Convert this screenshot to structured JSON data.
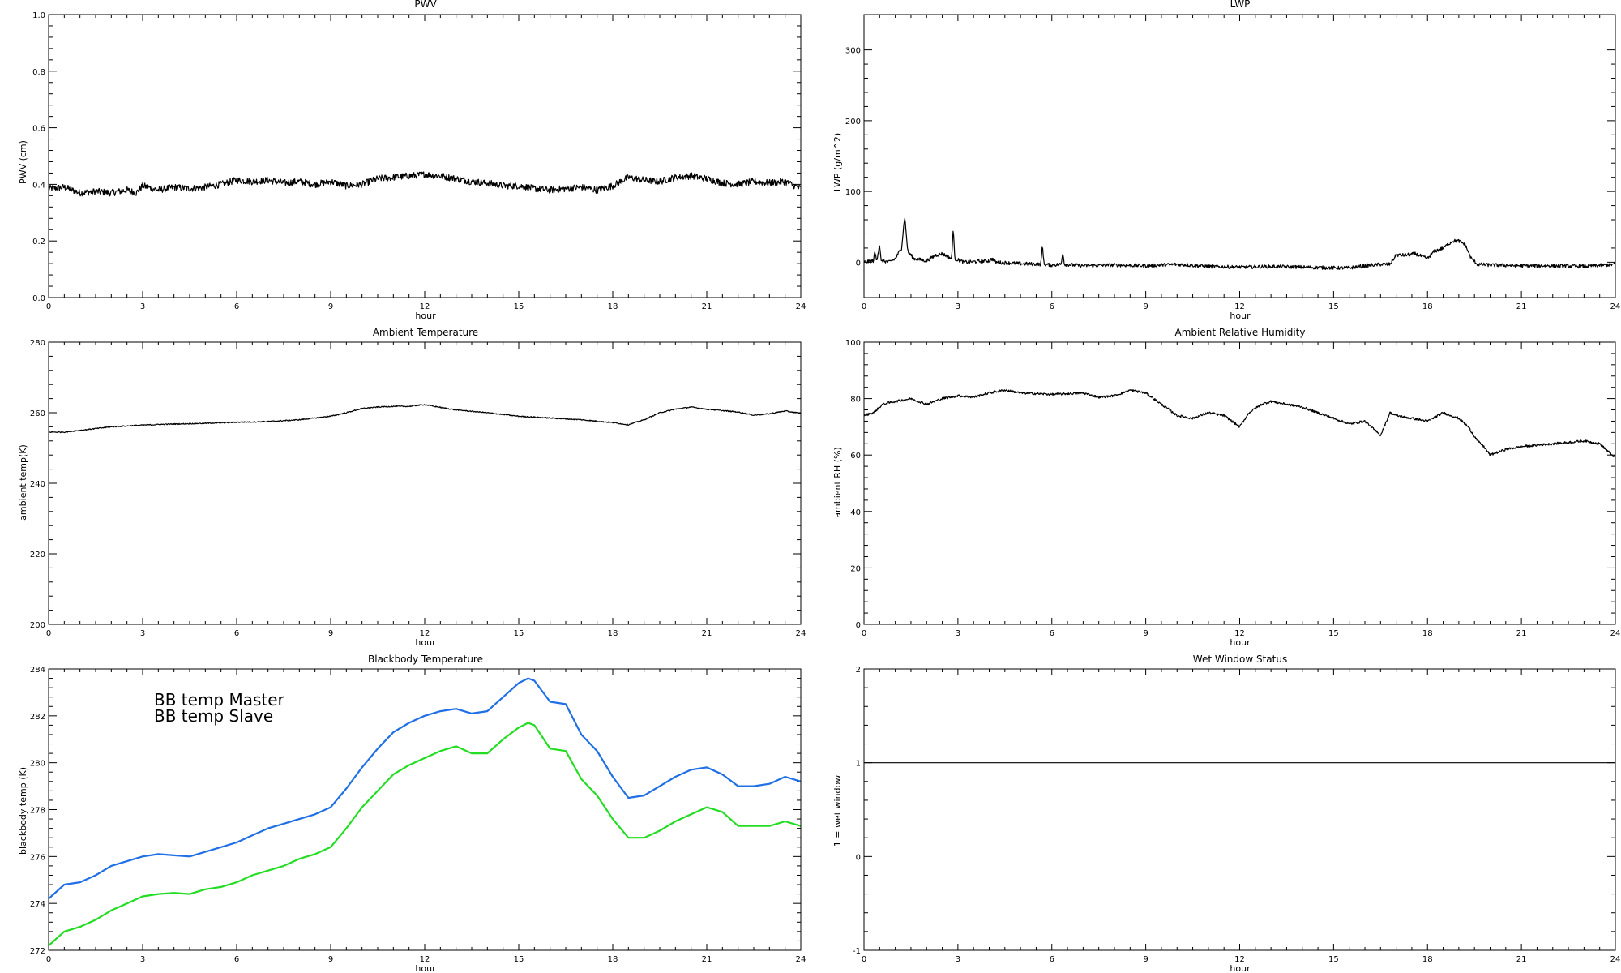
{
  "chart_data": [
    {
      "id": "pwv",
      "type": "line",
      "title": "PWV",
      "xlabel": "hour",
      "ylabel": "PWV (cm)",
      "xlim": [
        0,
        24
      ],
      "ylim": [
        0,
        1.0
      ],
      "xticks": [
        "0",
        "3",
        "6",
        "9",
        "12",
        "15",
        "18",
        "21",
        "24"
      ],
      "yticks": [
        "0.0",
        "0.2",
        "0.4",
        "0.6",
        "0.8",
        "1.0"
      ],
      "noise": 0.012,
      "series": [
        {
          "color": "#000000",
          "x": [
            0,
            0.5,
            1,
            1.5,
            2,
            2.5,
            2.8,
            3,
            3.5,
            4,
            4.5,
            5,
            5.5,
            6,
            6.5,
            7,
            7.5,
            8,
            8.5,
            9,
            9.5,
            10,
            10.5,
            11,
            11.5,
            12,
            12.5,
            13,
            13.5,
            14,
            14.5,
            15,
            15.5,
            16,
            16.5,
            17,
            17.5,
            18,
            18.5,
            19,
            19.5,
            20,
            20.5,
            21,
            21.5,
            22,
            22.5,
            23,
            23.5,
            24
          ],
          "y": [
            0.385,
            0.39,
            0.37,
            0.375,
            0.37,
            0.38,
            0.37,
            0.395,
            0.38,
            0.39,
            0.385,
            0.39,
            0.4,
            0.415,
            0.41,
            0.415,
            0.405,
            0.41,
            0.4,
            0.41,
            0.395,
            0.4,
            0.42,
            0.425,
            0.43,
            0.435,
            0.43,
            0.42,
            0.41,
            0.405,
            0.395,
            0.395,
            0.385,
            0.38,
            0.385,
            0.39,
            0.38,
            0.395,
            0.425,
            0.415,
            0.41,
            0.425,
            0.43,
            0.42,
            0.405,
            0.4,
            0.41,
            0.405,
            0.41,
            0.385
          ]
        }
      ]
    },
    {
      "id": "lwp",
      "type": "line",
      "title": "LWP",
      "xlabel": "hour",
      "ylabel": "LWP (g/m^2)",
      "xlim": [
        0,
        24
      ],
      "ylim": [
        -50,
        350
      ],
      "xticks": [
        "0",
        "3",
        "6",
        "9",
        "12",
        "15",
        "18",
        "21",
        "24"
      ],
      "yticks": [
        "0",
        "100",
        "200",
        "300"
      ],
      "noise": 2.5,
      "series": [
        {
          "color": "#000000",
          "x": [
            0,
            0.3,
            0.35,
            0.4,
            0.5,
            0.55,
            0.6,
            0.8,
            1.0,
            1.2,
            1.3,
            1.4,
            1.6,
            2.0,
            2.3,
            2.5,
            2.8,
            2.85,
            2.9,
            3.2,
            4.0,
            4.1,
            4.2,
            5.0,
            5.65,
            5.7,
            5.75,
            6.0,
            6.3,
            6.35,
            6.4,
            7,
            8,
            9,
            10,
            11,
            12,
            13,
            14,
            15,
            15.5,
            16,
            16.5,
            16.8,
            17,
            17.3,
            17.6,
            18,
            18.2,
            18.5,
            18.8,
            19.0,
            19.2,
            19.4,
            19.6,
            20,
            21,
            22,
            23,
            24
          ],
          "y": [
            0,
            2,
            15,
            2,
            25,
            0,
            2,
            0,
            5,
            20,
            65,
            15,
            5,
            2,
            10,
            12,
            5,
            50,
            5,
            0,
            2,
            5,
            0,
            -2,
            -3,
            25,
            -3,
            -4,
            -3,
            15,
            -3,
            -5,
            -4,
            -5,
            -3,
            -6,
            -7,
            -6,
            -7,
            -8,
            -8,
            -5,
            -3,
            -3,
            10,
            10,
            12,
            5,
            15,
            20,
            30,
            30,
            25,
            5,
            -3,
            -4,
            -5,
            -5,
            -6,
            -3
          ]
        }
      ]
    },
    {
      "id": "ambient-temperature",
      "type": "line",
      "title": "Ambient Temperature",
      "xlabel": "hour",
      "ylabel": "ambient temp(K)",
      "xlim": [
        0,
        24
      ],
      "ylim": [
        200,
        280
      ],
      "xticks": [
        "0",
        "3",
        "6",
        "9",
        "12",
        "15",
        "18",
        "21",
        "24"
      ],
      "yticks": [
        "200",
        "220",
        "240",
        "260",
        "280"
      ],
      "noise": 0.15,
      "series": [
        {
          "color": "#000000",
          "x": [
            0,
            0.5,
            1,
            1.5,
            2,
            3,
            4,
            5,
            6,
            7,
            8,
            9,
            9.5,
            10,
            10.5,
            11,
            11.5,
            12,
            12.5,
            13,
            14,
            15,
            16,
            17,
            18,
            18.5,
            19,
            19.5,
            20,
            20.5,
            21,
            22,
            22.5,
            23,
            23.5,
            24
          ],
          "y": [
            254.5,
            254.5,
            255,
            255.5,
            256,
            256.5,
            256.8,
            257,
            257.3,
            257.5,
            258,
            259,
            260,
            261.2,
            261.6,
            261.8,
            261.8,
            262.3,
            261.5,
            260.8,
            260,
            259,
            258.5,
            258,
            257.2,
            256.6,
            258,
            260,
            261,
            261.6,
            261,
            260.2,
            259.3,
            259.7,
            260.5,
            259.8
          ]
        }
      ]
    },
    {
      "id": "ambient-relative-humidity",
      "type": "line",
      "title": "Ambient Relative Humidity",
      "xlabel": "hour",
      "ylabel": "ambient RH (%)",
      "xlim": [
        0,
        24
      ],
      "ylim": [
        0,
        100
      ],
      "xticks": [
        "0",
        "3",
        "6",
        "9",
        "12",
        "15",
        "18",
        "21",
        "24"
      ],
      "yticks": [
        "0",
        "20",
        "40",
        "60",
        "80",
        "100"
      ],
      "noise": 0.4,
      "series": [
        {
          "color": "#000000",
          "x": [
            0,
            0.3,
            0.6,
            1,
            1.5,
            2,
            2.5,
            3,
            3.5,
            4,
            4.5,
            5,
            6,
            7,
            7.5,
            8,
            8.5,
            9,
            9.5,
            10,
            10.5,
            11,
            11.5,
            12,
            12.3,
            12.7,
            13,
            13.5,
            14,
            15,
            15.5,
            16,
            16.5,
            16.8,
            17,
            17.5,
            18,
            18.5,
            19,
            19.3,
            19.6,
            19.8,
            20,
            20.5,
            21,
            22,
            23,
            23.5,
            24
          ],
          "y": [
            74,
            75,
            78,
            79,
            80,
            78,
            80,
            81,
            80.5,
            82,
            83,
            82,
            81.5,
            82,
            80.5,
            81,
            83,
            82,
            78,
            74,
            73,
            75,
            74,
            70,
            75,
            78,
            79,
            78,
            77,
            73,
            71,
            72,
            67,
            75,
            74,
            73,
            72,
            75,
            73,
            70,
            65,
            63,
            60,
            62,
            63,
            64,
            65,
            64,
            59
          ]
        }
      ]
    },
    {
      "id": "blackbody-temperature",
      "type": "line",
      "title": "Blackbody Temperature",
      "xlabel": "hour",
      "ylabel": "blackbody temp (K)",
      "xlim": [
        0,
        24
      ],
      "ylim": [
        272,
        284
      ],
      "xticks": [
        "0",
        "3",
        "6",
        "9",
        "12",
        "15",
        "18",
        "21",
        "24"
      ],
      "yticks": [
        "272",
        "274",
        "276",
        "278",
        "280",
        "282",
        "284"
      ],
      "noise": 0,
      "legend": "upper-left",
      "series": [
        {
          "name": "BB temp Master",
          "color": "#1f6fe6",
          "x": [
            0,
            0.5,
            1,
            1.5,
            2,
            2.5,
            3,
            3.5,
            4,
            4.5,
            5,
            5.5,
            6,
            6.5,
            7,
            7.5,
            8,
            8.5,
            9,
            9.5,
            10,
            10.5,
            11,
            11.5,
            12,
            12.5,
            13,
            13.5,
            14,
            14.5,
            15,
            15.3,
            15.5,
            16,
            16.5,
            17,
            17.5,
            18,
            18.5,
            19,
            19.5,
            20,
            20.5,
            21,
            21.5,
            22,
            22.5,
            23,
            23.5,
            24
          ],
          "y": [
            274.2,
            274.8,
            274.9,
            275.2,
            275.6,
            275.8,
            276.0,
            276.1,
            276.05,
            276.0,
            276.2,
            276.4,
            276.6,
            276.9,
            277.2,
            277.4,
            277.6,
            277.8,
            278.1,
            278.9,
            279.8,
            280.6,
            281.3,
            281.7,
            282.0,
            282.2,
            282.3,
            282.1,
            282.2,
            282.8,
            283.4,
            283.6,
            283.5,
            282.6,
            282.5,
            281.2,
            280.5,
            279.4,
            278.5,
            278.6,
            279.0,
            279.4,
            279.7,
            279.8,
            279.5,
            279.0,
            279.0,
            279.1,
            279.4,
            279.2
          ]
        },
        {
          "name": "BB temp Slave",
          "color": "#22dd22",
          "x": [
            0,
            0.5,
            1,
            1.5,
            2,
            2.5,
            3,
            3.5,
            4,
            4.5,
            5,
            5.5,
            6,
            6.5,
            7,
            7.5,
            8,
            8.5,
            9,
            9.5,
            10,
            10.5,
            11,
            11.5,
            12,
            12.5,
            13,
            13.5,
            14,
            14.5,
            15,
            15.3,
            15.5,
            16,
            16.5,
            17,
            17.5,
            18,
            18.5,
            19,
            19.5,
            20,
            20.5,
            21,
            21.5,
            22,
            22.5,
            23,
            23.5,
            24
          ],
          "y": [
            272.2,
            272.8,
            273.0,
            273.3,
            273.7,
            274.0,
            274.3,
            274.4,
            274.45,
            274.4,
            274.6,
            274.7,
            274.9,
            275.2,
            275.4,
            275.6,
            275.9,
            276.1,
            276.4,
            277.2,
            278.1,
            278.8,
            279.5,
            279.9,
            280.2,
            280.5,
            280.7,
            280.4,
            280.4,
            281.0,
            281.5,
            281.7,
            281.6,
            280.6,
            280.5,
            279.3,
            278.6,
            277.6,
            276.8,
            276.8,
            277.1,
            277.5,
            277.8,
            278.1,
            277.9,
            277.3,
            277.3,
            277.3,
            277.5,
            277.3
          ]
        }
      ]
    },
    {
      "id": "wet-window-status",
      "type": "line",
      "title": "Wet Window Status",
      "xlabel": "hour",
      "ylabel": "1 = wet window",
      "xlim": [
        0,
        24
      ],
      "ylim": [
        -1,
        2
      ],
      "xticks": [
        "0",
        "3",
        "6",
        "9",
        "12",
        "15",
        "18",
        "21",
        "24"
      ],
      "yticks": [
        "-1",
        "0",
        "1",
        "2"
      ],
      "noise": 0,
      "series": [
        {
          "color": "#000000",
          "x": [
            0,
            24
          ],
          "y": [
            1,
            1
          ]
        }
      ]
    }
  ]
}
